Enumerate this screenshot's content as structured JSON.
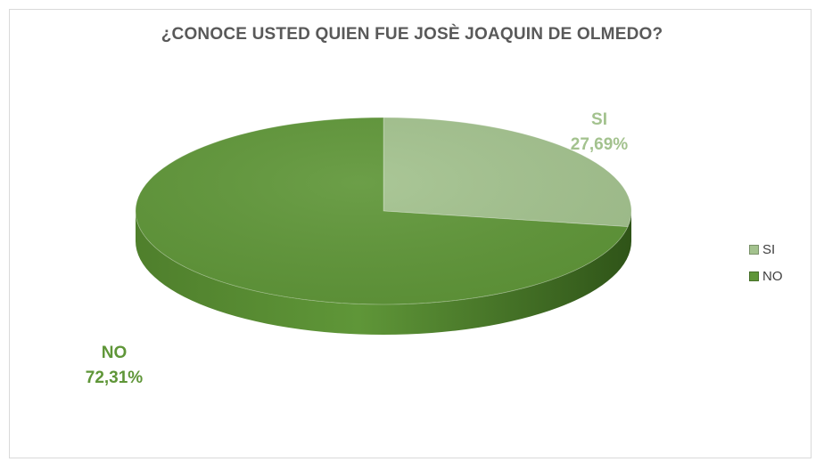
{
  "chart_data": {
    "type": "pie",
    "title": "¿CONOCE USTED QUIEN FUE JOSÈ JOAQUIN DE OLMEDO?",
    "categories": [
      "SI",
      "NO"
    ],
    "values": [
      27.69,
      72.31
    ],
    "data_labels": [
      "27,69%",
      "72,31%"
    ],
    "colors": [
      "#a3c28e",
      "#5f9638"
    ],
    "side_colors": [
      "#7f9f68",
      "#3f6d22"
    ],
    "legend_position": "right"
  }
}
